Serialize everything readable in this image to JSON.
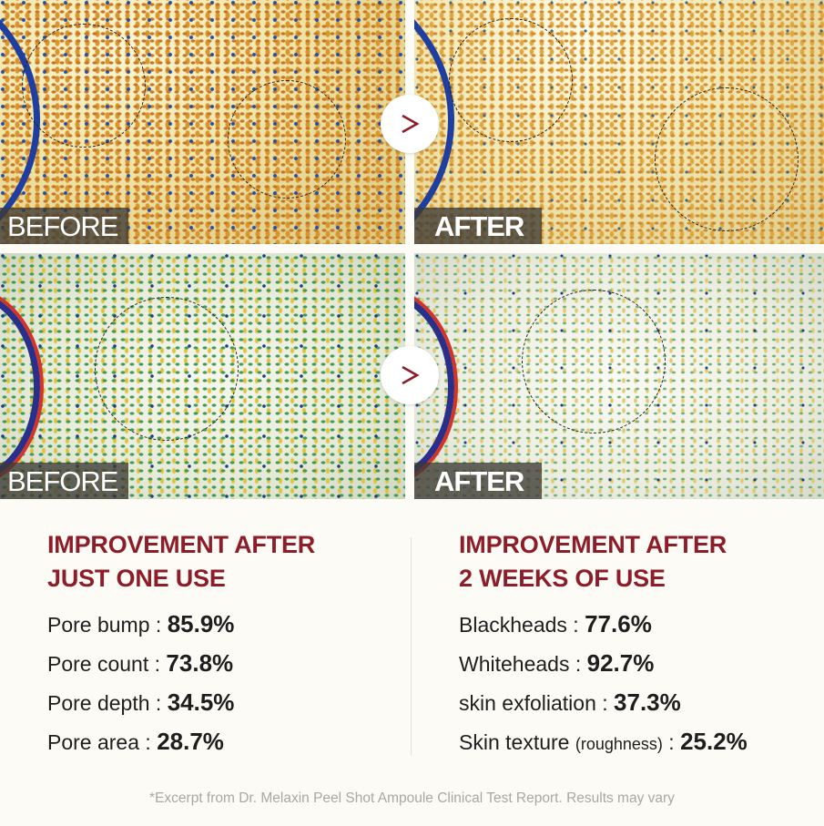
{
  "panels": [
    {
      "id": "top-before",
      "label": "BEFORE",
      "texture": "yellow"
    },
    {
      "id": "top-after",
      "label": "AFTER",
      "texture": "yellow"
    },
    {
      "id": "bottom-before",
      "label": "BEFORE",
      "texture": "green"
    },
    {
      "id": "bottom-after",
      "label": "AFTER",
      "texture": "green"
    }
  ],
  "arrow_icon": "chevron-right-icon",
  "colors": {
    "accent": "#8e1d2a",
    "background": "#fcfbf5",
    "footnote": "#a9a8a2"
  },
  "left": {
    "heading_line1": "IMPROVEMENT AFTER",
    "heading_line2": "JUST ONE USE",
    "stats": [
      {
        "label": "Pore bump : ",
        "value": "85.9%"
      },
      {
        "label": "Pore count : ",
        "value": "73.8%"
      },
      {
        "label": "Pore depth : ",
        "value": "34.5%"
      },
      {
        "label": "Pore area : ",
        "value": "28.7%"
      }
    ]
  },
  "right": {
    "heading_line1": "IMPROVEMENT AFTER",
    "heading_line2": "2 WEEKS OF USE",
    "stats": [
      {
        "label": "Blackheads : ",
        "value": "77.6%"
      },
      {
        "label": "Whiteheads : ",
        "value": "92.7%"
      },
      {
        "label": "skin exfoliation : ",
        "value": "37.3%"
      },
      {
        "label": "Skin texture ",
        "note": "(roughness)",
        "sep": " : ",
        "value": "25.2%"
      }
    ]
  },
  "footnote": "*Excerpt from Dr. Melaxin Peel Shot Ampoule Clinical Test Report. Results may vary"
}
